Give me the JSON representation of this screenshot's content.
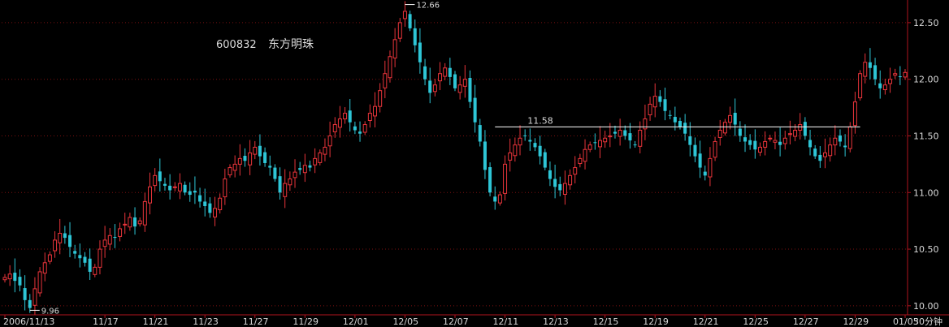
{
  "stock": {
    "code": "600832",
    "name": "东方明珠"
  },
  "colors": {
    "up": "#e8343a",
    "down": "#2ec6d6",
    "axis": "#b0141e",
    "grid": "#7a1010",
    "text": "#d8d8d8",
    "line": "#ffffff"
  },
  "chart_data": {
    "type": "candlestick",
    "period_label": "30分钟",
    "ylim": [
      9.92,
      12.7
    ],
    "y_ticks": [
      10.0,
      10.5,
      11.0,
      11.5,
      12.0,
      12.5
    ],
    "y_tick_labels": [
      "10.00",
      "10.50",
      "11.00",
      "11.50",
      "12.00",
      "12.50"
    ],
    "x_tick_labels": [
      "2006/11/13",
      "11/17",
      "11/21",
      "11/23",
      "11/27",
      "11/29",
      "12/01",
      "12/05",
      "12/07",
      "12/11",
      "12/13",
      "12/15",
      "12/19",
      "12/21",
      "12/25",
      "12/27",
      "12/29",
      "01/05"
    ],
    "x_tick_index": [
      0,
      20,
      30,
      40,
      50,
      60,
      70,
      80,
      90,
      100,
      110,
      120,
      130,
      140,
      150,
      160,
      170,
      180
    ],
    "annotations": {
      "high": {
        "index": 80,
        "value": 12.66,
        "label": "12.66"
      },
      "low": {
        "index": 5,
        "value": 9.96,
        "label": "9.96"
      },
      "resistance": {
        "from_index": 98,
        "to_index": 171,
        "value": 11.58,
        "label": "11.58"
      }
    },
    "close": [
      10.25,
      10.28,
      10.22,
      10.18,
      10.05,
      9.98,
      10.15,
      10.3,
      10.38,
      10.45,
      10.58,
      10.64,
      10.6,
      10.52,
      10.46,
      10.42,
      10.38,
      10.3,
      10.34,
      10.5,
      10.58,
      10.62,
      10.6,
      10.68,
      10.72,
      10.78,
      10.7,
      10.75,
      10.92,
      11.05,
      11.15,
      11.1,
      11.06,
      11.02,
      11.05,
      11.08,
      11.0,
      10.98,
      11.0,
      10.92,
      10.88,
      10.82,
      10.86,
      10.95,
      11.12,
      11.22,
      11.25,
      11.3,
      11.28,
      11.35,
      11.4,
      11.32,
      11.26,
      11.22,
      11.12,
      11.0,
      11.08,
      11.12,
      11.18,
      11.2,
      11.24,
      11.22,
      11.3,
      11.35,
      11.4,
      11.5,
      11.6,
      11.65,
      11.7,
      11.62,
      11.55,
      11.52,
      11.6,
      11.7,
      11.76,
      11.9,
      12.05,
      12.2,
      12.35,
      12.5,
      12.6,
      12.45,
      12.3,
      12.15,
      12.0,
      11.88,
      11.95,
      12.05,
      12.1,
      12.02,
      11.92,
      11.95,
      12.0,
      11.8,
      11.62,
      11.45,
      11.2,
      11.0,
      10.92,
      10.98,
      11.25,
      11.35,
      11.42,
      11.48,
      11.5,
      11.45,
      11.4,
      11.32,
      11.22,
      11.12,
      11.05,
      11.02,
      11.08,
      11.15,
      11.22,
      11.3,
      11.38,
      11.42,
      11.44,
      11.46,
      11.48,
      11.5,
      11.52,
      11.55,
      11.5,
      11.46,
      11.42,
      11.55,
      11.65,
      11.78,
      11.85,
      11.8,
      11.72,
      11.68,
      11.62,
      11.58,
      11.52,
      11.42,
      11.32,
      11.22,
      11.15,
      11.3,
      11.45,
      11.55,
      11.62,
      11.68,
      11.6,
      11.5,
      11.45,
      11.42,
      11.38,
      11.4,
      11.45,
      11.48,
      11.46,
      11.42,
      11.48,
      11.52,
      11.55,
      11.6,
      11.5,
      11.4,
      11.32,
      11.28,
      11.35,
      11.42,
      11.48,
      11.45,
      11.4,
      11.58,
      11.8,
      12.05,
      12.15,
      12.1,
      12.0,
      11.92,
      11.95,
      12.0,
      12.05,
      12.02,
      12.06
    ],
    "drawn_through_index": 171,
    "bars_per_half_hour_label": "30分钟"
  }
}
